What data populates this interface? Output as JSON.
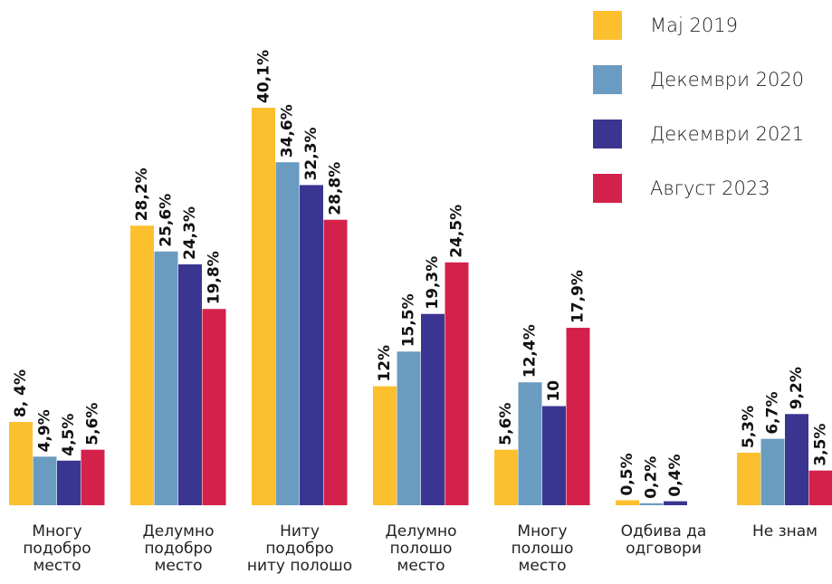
{
  "chart_data": {
    "type": "bar",
    "categories": [
      "Многу\nподобро\nместо",
      "Делумно\nподобро\nместо",
      "Ниту\nподобро\nниту полошо",
      "Делумно\nполошо\nместо",
      "Многу\nполошо\nместо",
      "Одбива да\nодговори",
      "Не знам"
    ],
    "series": [
      {
        "name": "Мај 2019",
        "color": "#fcbf2e",
        "values": [
          8.4,
          28.2,
          40.1,
          12,
          5.6,
          0.5,
          5.3
        ],
        "value_labels": [
          "8, 4%",
          "28,2%",
          "40,1%",
          "12%",
          "5,6%",
          "0,5%",
          "5,3%"
        ]
      },
      {
        "name": "Декември 2020",
        "color": "#6a9bc0",
        "values": [
          4.9,
          25.6,
          34.6,
          15.5,
          12.4,
          0.2,
          6.7
        ],
        "value_labels": [
          "4,9%",
          "25,6%",
          "34,6%",
          "15,5%",
          "12,4%",
          "0,2%",
          "6,7%"
        ]
      },
      {
        "name": "Декември 2021",
        "color": "#3b3592",
        "values": [
          4.5,
          24.3,
          32.3,
          19.3,
          10,
          0.4,
          9.2
        ],
        "value_labels": [
          "4,5%",
          "24,3%",
          "32,3%",
          "19,3%",
          "10",
          "0,4%",
          "9,2%"
        ]
      },
      {
        "name": "Август 2023",
        "color": "#d4214b",
        "values": [
          5.6,
          19.8,
          28.8,
          24.5,
          17.9,
          null,
          3.5
        ],
        "value_labels": [
          "5,6%",
          "19,8%",
          "28,8%",
          "24,5%",
          "17,9%",
          null,
          "3,5%"
        ]
      }
    ]
  }
}
